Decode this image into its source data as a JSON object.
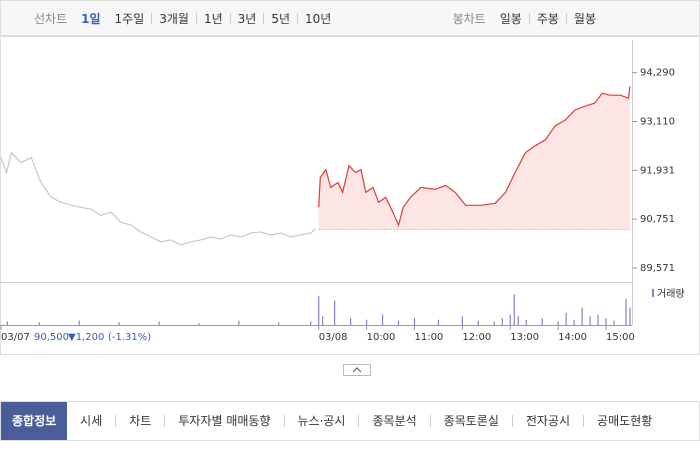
{
  "toolbar": {
    "line_label": "선차트",
    "periods": [
      "1일",
      "1주일",
      "3개월",
      "1년",
      "3년",
      "5년",
      "10년"
    ],
    "candle_label": "봉차트",
    "candle_periods": [
      "일봉",
      "주봉",
      "월봉"
    ]
  },
  "chart_data": {
    "type": "line",
    "xlim": [
      -398,
      390
    ],
    "ylim": [
      89280,
      95080
    ],
    "xticks": [
      {
        "value": -398,
        "label": "03/07"
      },
      {
        "value": 0,
        "label": "03/08"
      },
      {
        "value": 60,
        "label": "10:00"
      },
      {
        "value": 120,
        "label": "11:00"
      },
      {
        "value": 180,
        "label": "12:00"
      },
      {
        "value": 240,
        "label": "13:00"
      },
      {
        "value": 300,
        "label": "14:00"
      },
      {
        "value": 360,
        "label": "15:00"
      }
    ],
    "yticks": [
      {
        "value": 89571,
        "label": "89,571"
      },
      {
        "value": 90751,
        "label": "90,751"
      },
      {
        "value": 91931,
        "label": "91,931"
      },
      {
        "value": 93110,
        "label": "93,110"
      },
      {
        "value": 94290,
        "label": "94,290"
      }
    ],
    "grid": false,
    "reference_value": 90500,
    "reference_color": "#e03c31",
    "series": [
      {
        "color": "#c8c8c8",
        "x": [
          -398,
          -391,
          -385,
          -373,
          -360,
          -348,
          -335,
          -323,
          -310,
          -298,
          -285,
          -273,
          -260,
          -248,
          -235,
          -223,
          -210,
          -198,
          -185,
          -173,
          -160,
          -148,
          -135,
          -123,
          -110,
          -98,
          -85,
          -73,
          -60,
          -48,
          -35,
          -23,
          -10,
          -4
        ],
        "values": [
          92236,
          91877,
          92356,
          92116,
          92236,
          91637,
          91278,
          91158,
          91086,
          91038,
          90991,
          90847,
          90919,
          90679,
          90607,
          90439,
          90320,
          90200,
          90248,
          90128,
          90200,
          90248,
          90320,
          90272,
          90368,
          90320,
          90416,
          90439,
          90368,
          90416,
          90320,
          90368,
          90416,
          90511
        ]
      },
      {
        "color": "#e03c31",
        "fill": "#fbe5e5",
        "x": [
          0,
          2,
          9,
          15,
          24,
          30,
          38,
          46,
          53,
          59,
          68,
          75,
          84,
          93,
          100,
          106,
          115,
          128,
          146,
          159,
          171,
          184,
          203,
          221,
          234,
          246,
          259,
          271,
          284,
          296,
          309,
          321,
          334,
          346,
          355,
          365,
          378,
          388,
          390
        ],
        "values": [
          91038,
          91757,
          91948,
          91517,
          91637,
          91398,
          92044,
          91877,
          91948,
          91398,
          91517,
          91158,
          91278,
          90919,
          90607,
          91038,
          91278,
          91517,
          91470,
          91565,
          91398,
          91086,
          91086,
          91134,
          91398,
          91877,
          92356,
          92523,
          92667,
          93002,
          93146,
          93386,
          93482,
          93554,
          93793,
          93745,
          93745,
          93673,
          93960
        ]
      }
    ],
    "volume": {
      "name": "거래량",
      "color": "#8a7fc8",
      "ylim": [
        0,
        40
      ],
      "x": [
        -390,
        -350,
        -300,
        -250,
        -200,
        -150,
        -100,
        -50,
        -10,
        0,
        5,
        20,
        40,
        60,
        80,
        100,
        120,
        150,
        180,
        200,
        220,
        230,
        240,
        245,
        250,
        260,
        280,
        300,
        310,
        320,
        330,
        340,
        350,
        360,
        370,
        385,
        390
      ],
      "values": [
        4,
        3,
        5,
        3,
        4,
        2,
        5,
        3,
        4,
        33,
        10,
        28,
        8,
        6,
        12,
        5,
        8,
        6,
        10,
        5,
        4,
        8,
        12,
        35,
        10,
        6,
        8,
        4,
        14,
        6,
        20,
        10,
        12,
        8,
        5,
        30,
        20
      ]
    }
  },
  "price_summary": {
    "price": "90,500",
    "change": "▼1,200",
    "rate": "(-1.31%)"
  },
  "tabs": [
    "종합정보",
    "시세",
    "차트",
    "투자자별 매매동향",
    "뉴스·공시",
    "종목분석",
    "종목토론실",
    "전자공시",
    "공매도현황"
  ]
}
